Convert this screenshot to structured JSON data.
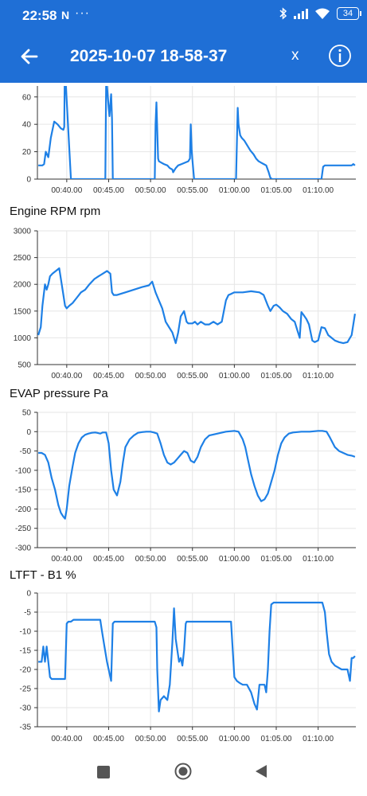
{
  "status_bar": {
    "time": "22:58",
    "notification": "N",
    "more": "···",
    "battery": "34"
  },
  "app_bar": {
    "title": "2025-10-07 18-58-37",
    "close_label": "x"
  },
  "colors": {
    "primary": "#1f6fd6",
    "line": "#1e80e6",
    "grid": "#e6e6e6"
  },
  "chart_data": [
    {
      "type": "line",
      "title": "",
      "x_ticks": [
        "00:40.00",
        "00:45.00",
        "00:50.00",
        "00:55.00",
        "01:00.00",
        "01:05.00",
        "01:10.00"
      ],
      "x_tick_values": [
        40,
        45,
        50,
        55,
        60,
        65,
        70
      ],
      "xlim": [
        36.5,
        74.5
      ],
      "ylim": [
        0,
        68
      ],
      "y_ticks": [
        0,
        20,
        40,
        60
      ],
      "grid": true,
      "series": [
        {
          "x": [
            36.6,
            37.1,
            37.3,
            37.5,
            37.8,
            38.1,
            38.5,
            38.9,
            39.3,
            39.6,
            39.7,
            39.75,
            39.9,
            40.5,
            44.6,
            44.7,
            44.8,
            45.0,
            45.1,
            45.3,
            45.4,
            45.5,
            45.7,
            45.9,
            50.5,
            50.6,
            50.7,
            50.9,
            51.0,
            51.3,
            51.6,
            52.0,
            52.3,
            52.6,
            52.7,
            53.0,
            53.3,
            53.7,
            54.1,
            54.5,
            54.7,
            54.8,
            54.9,
            55.0,
            55.2,
            56.3,
            60.2,
            60.4,
            60.5,
            60.7,
            60.9,
            61.2,
            61.6,
            61.9,
            62.3,
            62.6,
            62.9,
            63.2,
            63.5,
            63.8,
            64.1,
            64.3,
            64.5,
            64.8,
            65.0,
            70.4,
            70.6,
            70.8,
            71.1,
            71.5,
            72.0,
            73.0,
            74.0,
            74.2,
            74.4
          ],
          "y": [
            10,
            10,
            11,
            20,
            16,
            30,
            42,
            40,
            37,
            36,
            38,
            68,
            68,
            0,
            0,
            68,
            68,
            52,
            46,
            62,
            44,
            0,
            0,
            0,
            0,
            40,
            56,
            15,
            13,
            12,
            11,
            10,
            8,
            7,
            5,
            8,
            10,
            11,
            12,
            13,
            15,
            40,
            22,
            14,
            0,
            0,
            0,
            52,
            40,
            32,
            30,
            28,
            24,
            21,
            18,
            15,
            13,
            12,
            11,
            10,
            5,
            1,
            0,
            0,
            0,
            0,
            9,
            10,
            10,
            10,
            10,
            10,
            10,
            11,
            10
          ]
        }
      ]
    },
    {
      "type": "line",
      "title": "Engine RPM  rpm",
      "x_ticks": [
        "00:40.00",
        "00:45.00",
        "00:50.00",
        "00:55.00",
        "01:00.00",
        "01:05.00",
        "01:10.00"
      ],
      "x_tick_values": [
        40,
        45,
        50,
        55,
        60,
        65,
        70
      ],
      "xlim": [
        36.5,
        74.5
      ],
      "ylim": [
        500,
        3000
      ],
      "y_ticks": [
        500,
        1000,
        1500,
        2000,
        2500,
        3000
      ],
      "grid": true,
      "series": [
        {
          "name": "Engine RPM",
          "x": [
            36.6,
            36.9,
            37.1,
            37.4,
            37.6,
            37.8,
            38.0,
            38.3,
            38.7,
            39.1,
            39.5,
            39.8,
            40.0,
            40.3,
            40.7,
            41.2,
            41.7,
            42.2,
            42.7,
            43.3,
            43.8,
            44.3,
            44.8,
            45.2,
            45.4,
            45.6,
            46.0,
            47.0,
            48.0,
            49.0,
            49.8,
            50.2,
            50.6,
            51.0,
            51.4,
            51.8,
            52.2,
            52.6,
            53.0,
            53.3,
            53.6,
            54.0,
            54.3,
            54.5,
            54.8,
            55.0,
            55.3,
            55.6,
            56.0,
            56.5,
            57.0,
            57.5,
            58.0,
            58.5,
            59.0,
            59.3,
            59.6,
            60.0,
            61.0,
            62.0,
            63.0,
            63.5,
            64.0,
            64.3,
            64.7,
            65.0,
            65.4,
            65.8,
            66.3,
            66.8,
            67.2,
            67.5,
            67.8,
            68.0,
            68.3,
            68.6,
            68.9,
            69.3,
            69.6,
            70.0,
            70.4,
            70.8,
            71.2,
            71.6,
            72.0,
            72.5,
            73.0,
            73.5,
            74.0,
            74.4
          ],
          "y": [
            1050,
            1200,
            1600,
            2000,
            1900,
            2000,
            2150,
            2200,
            2250,
            2300,
            1900,
            1600,
            1550,
            1600,
            1650,
            1750,
            1850,
            1900,
            2000,
            2100,
            2150,
            2200,
            2250,
            2200,
            1850,
            1800,
            1800,
            1850,
            1900,
            1950,
            1980,
            2050,
            1850,
            1700,
            1550,
            1300,
            1200,
            1100,
            900,
            1100,
            1400,
            1500,
            1300,
            1270,
            1270,
            1270,
            1300,
            1250,
            1300,
            1250,
            1250,
            1300,
            1250,
            1300,
            1700,
            1800,
            1820,
            1850,
            1850,
            1870,
            1850,
            1800,
            1600,
            1500,
            1600,
            1620,
            1570,
            1500,
            1450,
            1350,
            1300,
            1150,
            1000,
            1480,
            1420,
            1350,
            1250,
            950,
            920,
            950,
            1200,
            1180,
            1050,
            1000,
            950,
            920,
            900,
            920,
            1050,
            1450
          ]
        }
      ]
    },
    {
      "type": "line",
      "title": "EVAP pressure  Pa",
      "x_ticks": [
        "00:40.00",
        "00:45.00",
        "00:50.00",
        "00:55.00",
        "01:00.00",
        "01:05.00",
        "01:10.00"
      ],
      "x_tick_values": [
        40,
        45,
        50,
        55,
        60,
        65,
        70
      ],
      "xlim": [
        36.5,
        74.5
      ],
      "ylim": [
        -300,
        50
      ],
      "y_ticks": [
        -300,
        -250,
        -200,
        -150,
        -100,
        -50,
        0,
        50
      ],
      "grid": true,
      "series": [
        {
          "name": "EVAP pressure",
          "x": [
            36.6,
            37.0,
            37.4,
            37.8,
            38.2,
            38.6,
            39.0,
            39.3,
            39.6,
            39.8,
            40.0,
            40.3,
            40.7,
            41.0,
            41.4,
            41.8,
            42.2,
            42.6,
            43.0,
            43.4,
            43.6,
            44.0,
            44.3,
            44.7,
            45.0,
            45.3,
            45.6,
            46.0,
            46.4,
            46.7,
            47.0,
            47.5,
            48.0,
            48.5,
            49.0,
            49.5,
            50.0,
            50.4,
            50.8,
            51.2,
            51.6,
            52.0,
            52.4,
            52.8,
            53.2,
            53.6,
            54.0,
            54.4,
            54.8,
            55.2,
            55.6,
            56.0,
            56.5,
            57.0,
            58.0,
            59.0,
            60.0,
            60.5,
            61.0,
            61.3,
            61.6,
            62.0,
            62.4,
            62.8,
            63.2,
            63.6,
            64.0,
            64.4,
            64.8,
            65.2,
            65.6,
            66.0,
            66.5,
            67.0,
            68.0,
            69.0,
            70.0,
            70.5,
            71.0,
            71.4,
            72.0,
            72.5,
            73.0,
            73.5,
            74.0,
            74.4
          ],
          "y": [
            -55,
            -55,
            -60,
            -80,
            -120,
            -150,
            -190,
            -210,
            -220,
            -225,
            -200,
            -140,
            -90,
            -55,
            -30,
            -15,
            -8,
            -5,
            -3,
            -2,
            -3,
            -5,
            -2,
            -2,
            -30,
            -100,
            -150,
            -165,
            -130,
            -80,
            -40,
            -20,
            -10,
            -3,
            -1,
            0,
            0,
            -2,
            -5,
            -30,
            -60,
            -80,
            -85,
            -80,
            -70,
            -60,
            -50,
            -55,
            -75,
            -80,
            -65,
            -40,
            -20,
            -10,
            -5,
            0,
            2,
            0,
            -20,
            -40,
            -70,
            -110,
            -140,
            -165,
            -180,
            -175,
            -160,
            -130,
            -100,
            -60,
            -30,
            -15,
            -5,
            -2,
            0,
            0,
            2,
            2,
            0,
            -15,
            -40,
            -50,
            -55,
            -60,
            -62,
            -65
          ]
        }
      ]
    },
    {
      "type": "line",
      "title": "LTFT - B1  %",
      "x_ticks": [
        "00:40.00",
        "00:45.00",
        "00:50.00",
        "00:55.00",
        "01:00.00",
        "01:05.00",
        "01:10.00"
      ],
      "x_tick_values": [
        40,
        45,
        50,
        55,
        60,
        65,
        70
      ],
      "xlim": [
        36.5,
        74.5
      ],
      "ylim": [
        -35,
        0
      ],
      "y_ticks": [
        -35,
        -30,
        -25,
        -20,
        -15,
        -10,
        -5,
        0
      ],
      "grid": true,
      "series": [
        {
          "name": "LTFT - B1",
          "x": [
            36.6,
            37.0,
            37.2,
            37.4,
            37.6,
            37.8,
            38.0,
            38.2,
            38.6,
            39.0,
            39.5,
            39.8,
            40.0,
            40.2,
            40.5,
            40.8,
            41.0,
            41.5,
            42.0,
            42.5,
            43.0,
            43.5,
            44.0,
            44.2,
            44.5,
            44.8,
            45.0,
            45.3,
            45.5,
            45.7,
            46.0,
            47.0,
            48.0,
            49.0,
            50.0,
            50.5,
            50.7,
            50.8,
            51.0,
            51.2,
            51.6,
            52.0,
            52.3,
            52.6,
            52.8,
            53.0,
            53.2,
            53.4,
            53.6,
            53.8,
            54.0,
            54.2,
            54.3,
            54.5,
            55.0,
            56.0,
            57.0,
            58.0,
            59.0,
            59.3,
            59.6,
            60.0,
            60.3,
            60.6,
            61.0,
            61.5,
            62.0,
            62.4,
            62.7,
            63.0,
            63.3,
            63.6,
            63.8,
            64.0,
            64.2,
            64.4,
            64.7,
            65.0,
            66.0,
            67.0,
            68.0,
            69.0,
            70.0,
            70.5,
            70.8,
            71.0,
            71.3,
            71.6,
            72.0,
            72.4,
            72.8,
            73.2,
            73.5,
            73.8,
            74.0,
            74.2,
            74.4
          ],
          "y": [
            -18,
            -18,
            -14,
            -18,
            -14,
            -18,
            -22,
            -22.5,
            -22.5,
            -22.5,
            -22.5,
            -22.5,
            -8,
            -7.5,
            -7.5,
            -7,
            -7,
            -7,
            -7,
            -7,
            -7,
            -7,
            -7,
            -10,
            -14,
            -18,
            -20,
            -23,
            -8,
            -7.5,
            -7.5,
            -7.5,
            -7.5,
            -7.5,
            -7.5,
            -7.5,
            -9,
            -20,
            -31,
            -28,
            -27,
            -28,
            -24,
            -13,
            -4,
            -12,
            -15,
            -18,
            -17,
            -19,
            -15,
            -8,
            -7.5,
            -7.5,
            -7.5,
            -7.5,
            -7.5,
            -7.5,
            -7.5,
            -7.5,
            -7.5,
            -22,
            -23,
            -23.5,
            -24,
            -24,
            -26,
            -29,
            -30.5,
            -24,
            -24,
            -24,
            -26,
            -20,
            -10,
            -3,
            -2.5,
            -2.5,
            -2.5,
            -2.5,
            -2.5,
            -2.5,
            -2.5,
            -2.5,
            -5,
            -10,
            -16,
            -18,
            -19,
            -19.5,
            -20,
            -20,
            -20,
            -23,
            -17,
            -17,
            -16.5
          ]
        }
      ]
    }
  ]
}
